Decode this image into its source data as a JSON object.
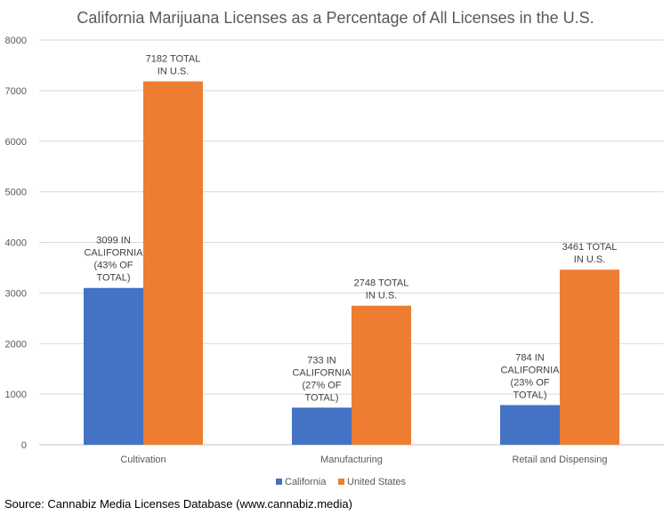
{
  "chart_data": {
    "type": "bar",
    "title": "California Marijuana Licenses as a Percentage of All Licenses in the U.S.",
    "categories": [
      "Cultivation",
      "Manufacturing",
      "Retail and Dispensing"
    ],
    "series": [
      {
        "name": "California",
        "color": "#4472C4",
        "values": [
          3099,
          733,
          784
        ],
        "labels": [
          [
            "3099 IN",
            "CALIFORNIA",
            "(43% OF",
            "TOTAL)"
          ],
          [
            "733 IN",
            "CALIFORNIA",
            "(27% OF",
            "TOTAL)"
          ],
          [
            "784 IN",
            "CALIFORNIA",
            "(23% OF",
            "TOTAL)"
          ]
        ]
      },
      {
        "name": "United States",
        "color": "#ED7D31",
        "values": [
          7182,
          2748,
          3461
        ],
        "labels": [
          [
            "7182 TOTAL",
            "IN U.S."
          ],
          [
            "2748 TOTAL",
            "IN U.S."
          ],
          [
            "3461 TOTAL",
            "IN U.S."
          ]
        ]
      }
    ],
    "ylim": [
      0,
      8000
    ],
    "yticks": [
      0,
      1000,
      2000,
      3000,
      4000,
      5000,
      6000,
      7000,
      8000
    ],
    "xlabel": "",
    "ylabel": "",
    "grid": true,
    "legend": "bottom"
  },
  "source": "Source: Cannabiz Media Licenses Database (www.cannabiz.media)"
}
